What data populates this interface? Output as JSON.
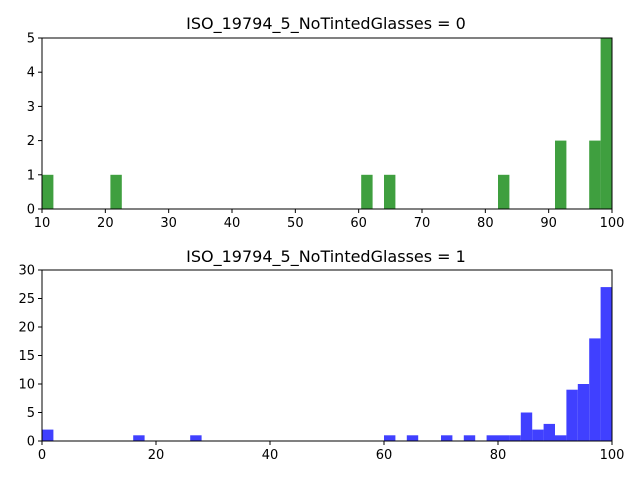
{
  "chart_data": [
    {
      "type": "bar",
      "title": "ISO_19794_5_NoTintedGlasses = 0",
      "xlabel": "",
      "ylabel": "",
      "xlim": [
        10,
        100
      ],
      "ylim": [
        0,
        5
      ],
      "xticks": [
        10,
        20,
        30,
        40,
        50,
        60,
        70,
        80,
        90,
        100
      ],
      "yticks": [
        0,
        1,
        2,
        3,
        4,
        5
      ],
      "bin_width": 1.8,
      "color": "#3f9f3f",
      "bins": [
        {
          "x0": 10.0,
          "count": 1
        },
        {
          "x0": 20.8,
          "count": 1
        },
        {
          "x0": 60.4,
          "count": 1
        },
        {
          "x0": 64.0,
          "count": 1
        },
        {
          "x0": 82.0,
          "count": 1
        },
        {
          "x0": 91.0,
          "count": 2
        },
        {
          "x0": 96.4,
          "count": 2
        },
        {
          "x0": 98.2,
          "count": 5
        }
      ]
    },
    {
      "type": "bar",
      "title": "ISO_19794_5_NoTintedGlasses = 1",
      "xlabel": "",
      "ylabel": "",
      "xlim": [
        0,
        100
      ],
      "ylim": [
        0,
        30
      ],
      "xticks": [
        0,
        20,
        40,
        60,
        80,
        100
      ],
      "yticks": [
        0,
        5,
        10,
        15,
        20,
        25,
        30
      ],
      "bin_width": 2.0,
      "color": "#4040ff",
      "bins": [
        {
          "x0": 0,
          "count": 2
        },
        {
          "x0": 16,
          "count": 1
        },
        {
          "x0": 26,
          "count": 1
        },
        {
          "x0": 60,
          "count": 1
        },
        {
          "x0": 64,
          "count": 1
        },
        {
          "x0": 70,
          "count": 1
        },
        {
          "x0": 74,
          "count": 1
        },
        {
          "x0": 78,
          "count": 1
        },
        {
          "x0": 80,
          "count": 1
        },
        {
          "x0": 82,
          "count": 1
        },
        {
          "x0": 84,
          "count": 5
        },
        {
          "x0": 86,
          "count": 2
        },
        {
          "x0": 88,
          "count": 3
        },
        {
          "x0": 90,
          "count": 1
        },
        {
          "x0": 92,
          "count": 9
        },
        {
          "x0": 94,
          "count": 10
        },
        {
          "x0": 96,
          "count": 18
        },
        {
          "x0": 98,
          "count": 27
        }
      ]
    }
  ]
}
